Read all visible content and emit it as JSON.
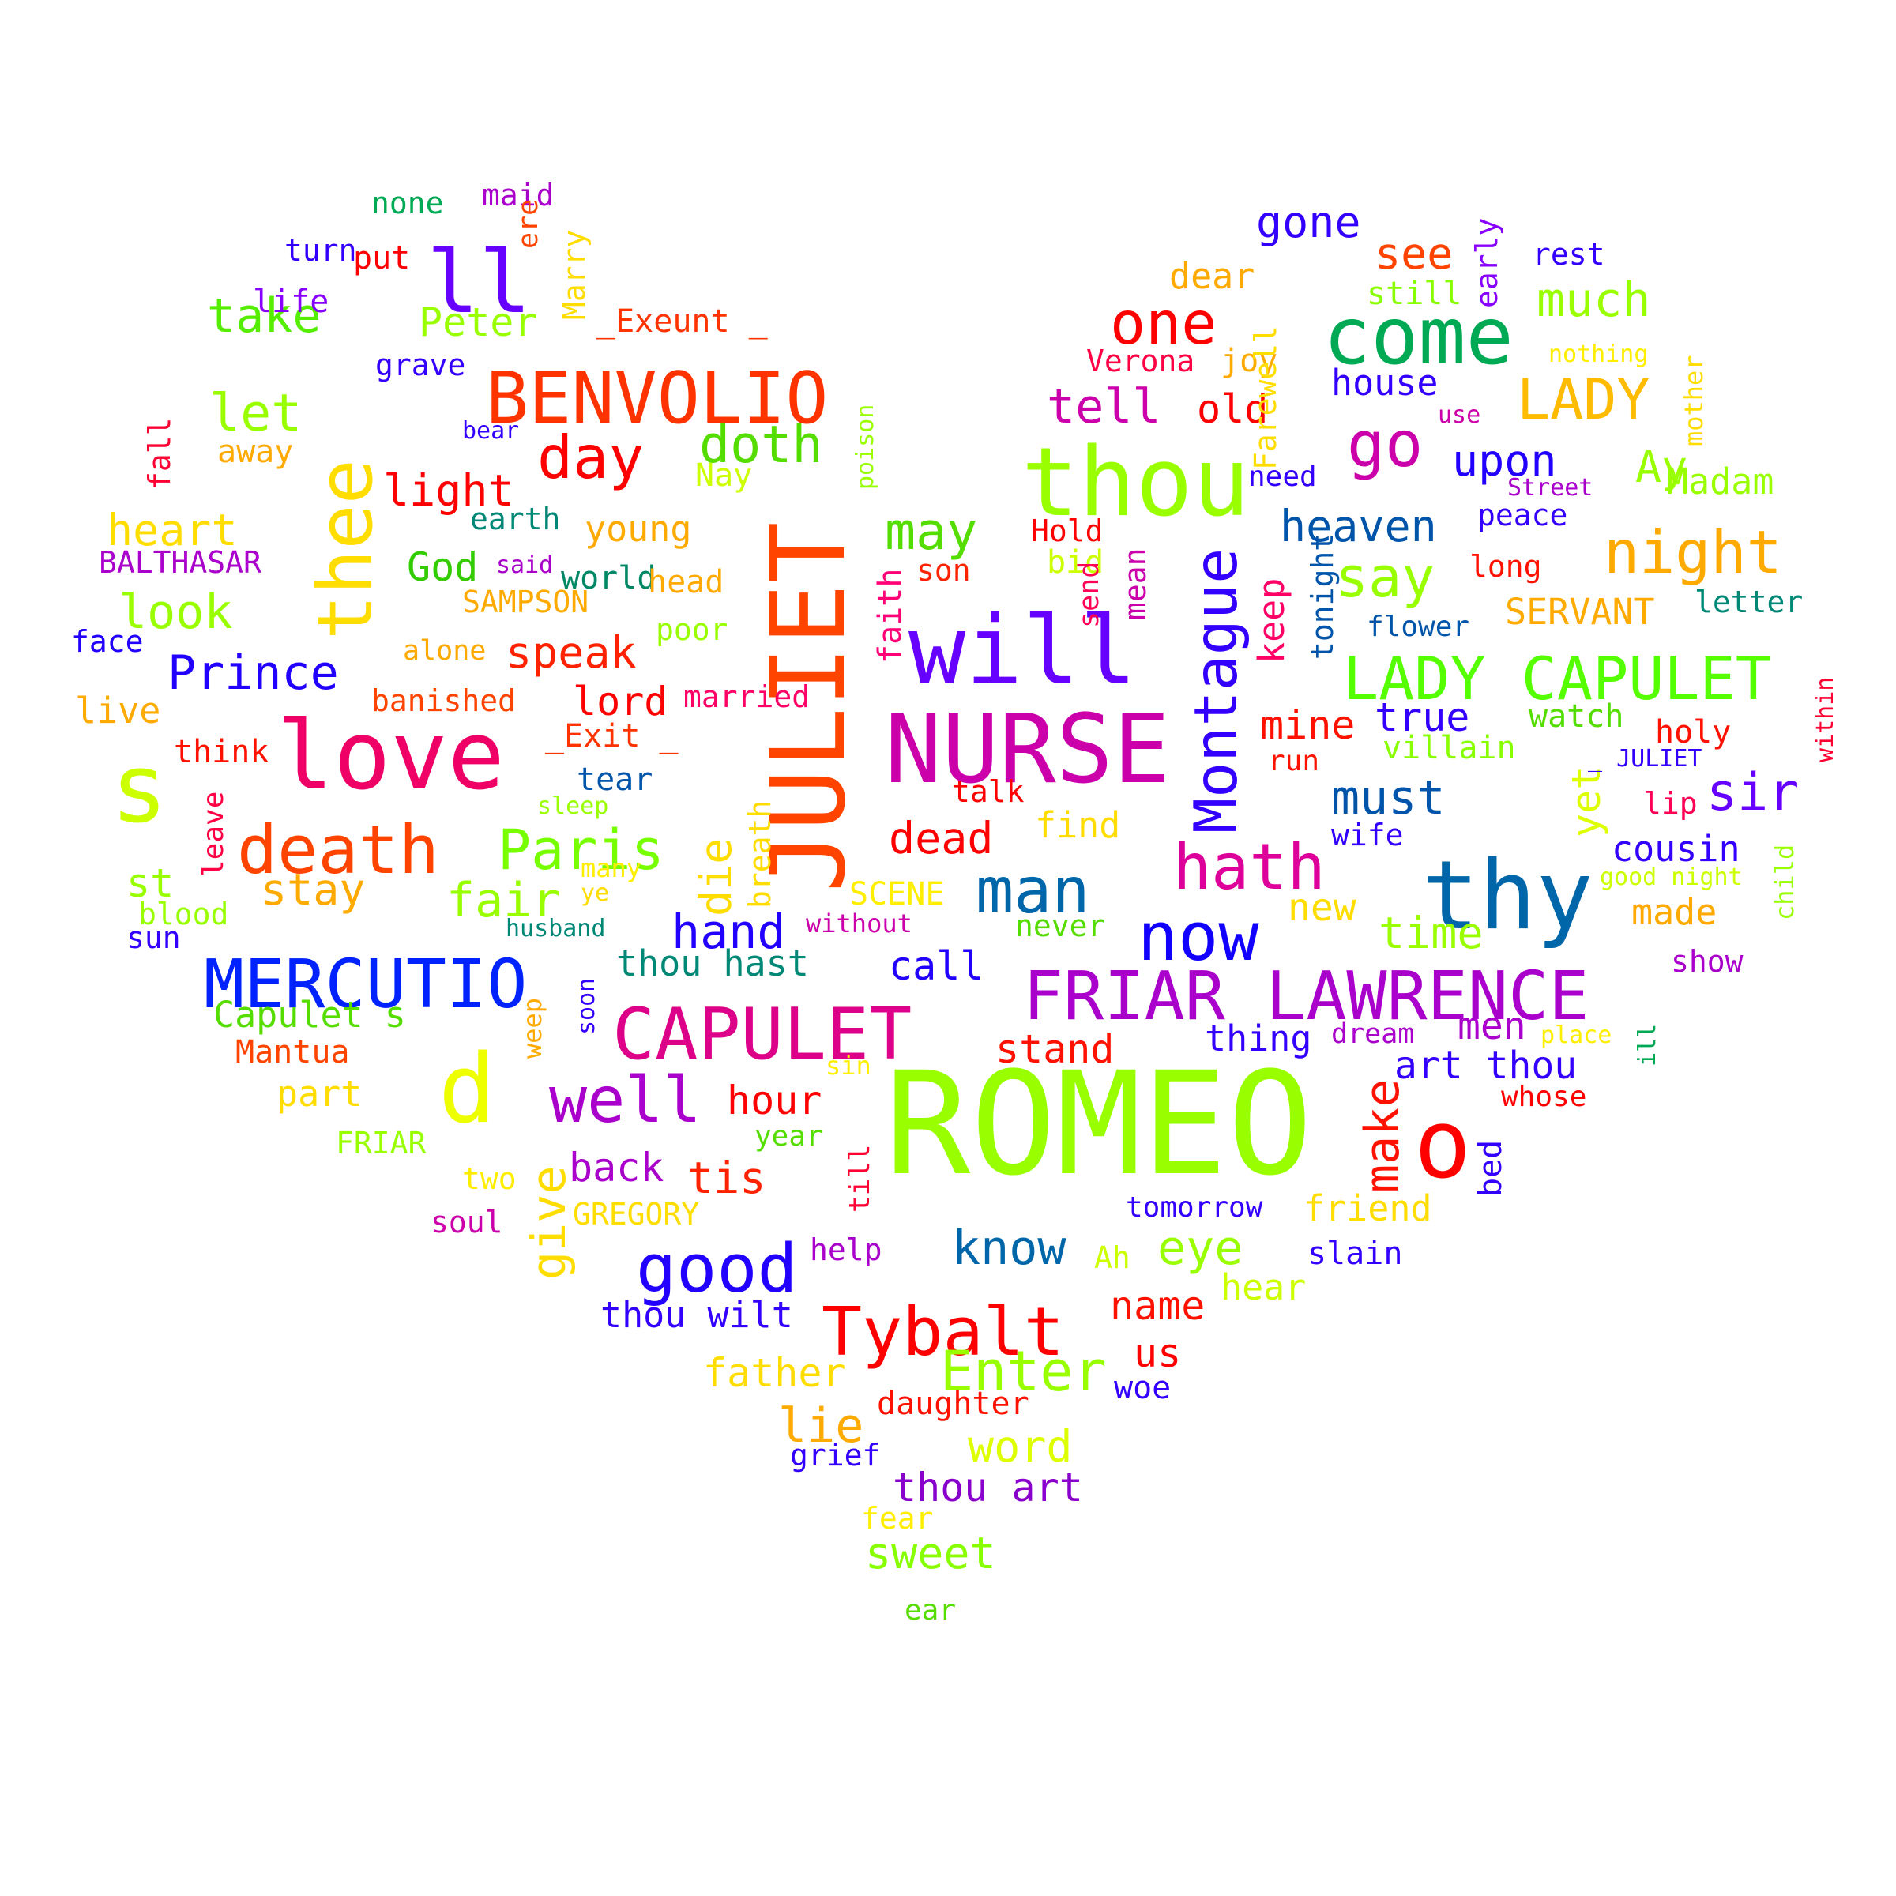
{
  "words": [
    {
      "text": "ROMEO",
      "color": "#99ff00"
    },
    {
      "text": "NURSE",
      "color": "#cc00aa"
    },
    {
      "text": "JULIET",
      "color": "#ff4400"
    },
    {
      "text": "thy",
      "color": "#0066aa"
    },
    {
      "text": "will",
      "color": "#6600ff"
    },
    {
      "text": "thou",
      "color": "#99ff00"
    },
    {
      "text": "love",
      "color": "#ee0066"
    },
    {
      "text": "s",
      "color": "#ccff00"
    },
    {
      "text": "d",
      "color": "#eeff00"
    },
    {
      "text": "o",
      "color": "#ff0000"
    },
    {
      "text": "thee",
      "color": "#ffdd00"
    },
    {
      "text": "come",
      "color": "#00aa55"
    },
    {
      "text": "BENVOLIO",
      "color": "#ff3300"
    },
    {
      "text": "MERCUTIO",
      "color": "#0022ff"
    },
    {
      "text": "CAPULET",
      "color": "#dd0088"
    },
    {
      "text": "FRIAR LAWRENCE",
      "color": "#aa00cc"
    },
    {
      "text": "LADY CAPULET",
      "color": "#55ff00"
    },
    {
      "text": "Tybalt",
      "color": "#ff0000"
    },
    {
      "text": "death",
      "color": "#ff4400"
    },
    {
      "text": "Montague",
      "color": "#3300ff"
    },
    {
      "text": "ll",
      "color": "#6600ff"
    },
    {
      "text": "good",
      "color": "#2200ff"
    },
    {
      "text": "well",
      "color": "#aa00cc"
    },
    {
      "text": "man",
      "color": "#0066aa"
    },
    {
      "text": "now",
      "color": "#1100ff"
    },
    {
      "text": "hath",
      "color": "#dd0099"
    },
    {
      "text": "Paris",
      "color": "#77ff00"
    },
    {
      "text": "one",
      "color": "#ff0000"
    },
    {
      "text": "go",
      "color": "#cc00aa"
    },
    {
      "text": "day",
      "color": "#ff0000"
    },
    {
      "text": "doth",
      "color": "#55dd00"
    },
    {
      "text": "night",
      "color": "#ffaa00"
    },
    {
      "text": "say",
      "color": "#99ff00"
    },
    {
      "text": "Enter",
      "color": "#99ff00"
    },
    {
      "text": "LADY",
      "color": "#ffbb00"
    },
    {
      "text": "may",
      "color": "#55dd00"
    },
    {
      "text": "tell",
      "color": "#cc00aa"
    },
    {
      "text": "let",
      "color": "#99ff00"
    },
    {
      "text": "take",
      "color": "#55ee00"
    },
    {
      "text": "look",
      "color": "#99ff00"
    },
    {
      "text": "Prince",
      "color": "#2200ff"
    },
    {
      "text": "make",
      "color": "#ff1100"
    },
    {
      "text": "give",
      "color": "#ffdd00"
    },
    {
      "text": "know",
      "color": "#0066aa"
    },
    {
      "text": "eye",
      "color": "#99ff00"
    },
    {
      "text": "sir",
      "color": "#6600ff"
    },
    {
      "text": "much",
      "color": "#99ff00"
    },
    {
      "text": "upon",
      "color": "#2200ff"
    },
    {
      "text": "must",
      "color": "#0055aa"
    },
    {
      "text": "yet",
      "color": "#ddff00"
    },
    {
      "text": "fair",
      "color": "#99ff00"
    },
    {
      "text": "hand",
      "color": "#2200ff"
    },
    {
      "text": "light",
      "color": "#ff0000"
    },
    {
      "text": "speak",
      "color": "#ff2200"
    },
    {
      "text": "heaven",
      "color": "#0055aa"
    },
    {
      "text": "heart",
      "color": "#ffdd00"
    },
    {
      "text": "stay",
      "color": "#ffaa00"
    },
    {
      "text": "see",
      "color": "#ff4400"
    },
    {
      "text": "gone",
      "color": "#3300ff"
    },
    {
      "text": "dead",
      "color": "#ff0000"
    },
    {
      "text": "lie",
      "color": "#ffaa00"
    },
    {
      "text": "word",
      "color": "#ddff00"
    },
    {
      "text": "sweet",
      "color": "#88ff00"
    },
    {
      "text": "thou art",
      "color": "#8800cc"
    },
    {
      "text": "tis",
      "color": "#ff2200"
    },
    {
      "text": "name",
      "color": "#ff1100"
    },
    {
      "text": "back",
      "color": "#aa00cc"
    },
    {
      "text": "hour",
      "color": "#ff0000"
    },
    {
      "text": "stand",
      "color": "#ff1100"
    },
    {
      "text": "call",
      "color": "#2200ff"
    },
    {
      "text": "time",
      "color": "#99ff00"
    },
    {
      "text": "art thou",
      "color": "#3300ff"
    },
    {
      "text": "die",
      "color": "#ffdd00"
    },
    {
      "text": "Ay",
      "color": "#99ff00"
    },
    {
      "text": "God",
      "color": "#33cc00"
    },
    {
      "text": "lord",
      "color": "#ff0000"
    },
    {
      "text": "mine",
      "color": "#ff1100"
    },
    {
      "text": "true",
      "color": "#3300ff"
    },
    {
      "text": "cousin",
      "color": "#3300ff"
    },
    {
      "text": "us",
      "color": "#ff0000"
    },
    {
      "text": "new",
      "color": "#ffdd00"
    },
    {
      "text": "men",
      "color": "#aa00cc"
    },
    {
      "text": "old",
      "color": "#ff0000"
    },
    {
      "text": "house",
      "color": "#3300ff"
    },
    {
      "text": "thou wilt",
      "color": "#3300ff"
    },
    {
      "text": "Peter",
      "color": "#99ff00"
    },
    {
      "text": "father",
      "color": "#ffdd00"
    },
    {
      "text": "dear",
      "color": "#ffaa00"
    },
    {
      "text": "hear",
      "color": "#ccff00"
    },
    {
      "text": "thou hast",
      "color": "#008877"
    },
    {
      "text": "st",
      "color": "#99ff00"
    },
    {
      "text": "made",
      "color": "#ffaa00"
    },
    {
      "text": "young",
      "color": "#ffaa00"
    },
    {
      "text": "live",
      "color": "#ffaa00"
    },
    {
      "text": "Madam",
      "color": "#99ff00"
    },
    {
      "text": "SERVANT",
      "color": "#ffaa00"
    },
    {
      "text": "Capulet s",
      "color": "#55dd00"
    },
    {
      "text": "watch",
      "color": "#55dd00"
    },
    {
      "text": "holy",
      "color": "#ff1100"
    },
    {
      "text": "find",
      "color": "#ffdd00"
    },
    {
      "text": "thing",
      "color": "#3300ff"
    },
    {
      "text": "friend",
      "color": "#ffdd00"
    },
    {
      "text": "keep",
      "color": "#ff0066"
    },
    {
      "text": "_Exeunt _",
      "color": "#ff3300"
    },
    {
      "text": "_Exit _",
      "color": "#ff3300"
    },
    {
      "text": "world",
      "color": "#008866"
    },
    {
      "text": "part",
      "color": "#ffdd00"
    },
    {
      "text": "head",
      "color": "#ffaa00"
    },
    {
      "text": "faith",
      "color": "#ff0077"
    },
    {
      "text": "Marry",
      "color": "#ffdd00"
    },
    {
      "text": "life",
      "color": "#8800ff"
    },
    {
      "text": "SAMPSON",
      "color": "#ffaa00"
    },
    {
      "text": "earth",
      "color": "#008877"
    },
    {
      "text": "letter",
      "color": "#008877"
    },
    {
      "text": "tear",
      "color": "#0055aa"
    },
    {
      "text": "poor",
      "color": "#99ff00"
    },
    {
      "text": "married",
      "color": "#ff0066"
    },
    {
      "text": "banished",
      "color": "#ff4400"
    },
    {
      "text": "think",
      "color": "#ff1100"
    },
    {
      "text": "face",
      "color": "#2200ff"
    },
    {
      "text": "away",
      "color": "#ffaa00"
    },
    {
      "text": "grave",
      "color": "#3300ff"
    },
    {
      "text": "put",
      "color": "#ff0000"
    },
    {
      "text": "turn",
      "color": "#3300ff"
    },
    {
      "text": "none",
      "color": "#00aa55"
    },
    {
      "text": "maid",
      "color": "#aa00cc"
    },
    {
      "text": "ere",
      "color": "#ff4400"
    },
    {
      "text": "BALTHASAR",
      "color": "#aa00cc"
    },
    {
      "text": "Hold",
      "color": "#ff0000"
    },
    {
      "text": "bid",
      "color": "#ccff00"
    },
    {
      "text": "son",
      "color": "#ff2200"
    },
    {
      "text": "mean",
      "color": "#cc00aa"
    },
    {
      "text": "send",
      "color": "#ff0055"
    },
    {
      "text": "Verona",
      "color": "#ff0044"
    },
    {
      "text": "joy",
      "color": "#ffaa00"
    },
    {
      "text": "need",
      "color": "#3300ff"
    },
    {
      "text": "still",
      "color": "#88ff00"
    },
    {
      "text": "rest",
      "color": "#3300ff"
    },
    {
      "text": "early",
      "color": "#8800ff"
    },
    {
      "text": "Farewell",
      "color": "#ffdd00"
    },
    {
      "text": "nothing",
      "color": "#ffee00"
    },
    {
      "text": "mother",
      "color": "#ffdd00"
    },
    {
      "text": "use",
      "color": "#cc00aa"
    },
    {
      "text": "Street",
      "color": "#aa00cc"
    },
    {
      "text": "peace",
      "color": "#3300ff"
    },
    {
      "text": "long",
      "color": "#ff1100"
    },
    {
      "text": "tonight",
      "color": "#0055aa"
    },
    {
      "text": "flower",
      "color": "#0055aa"
    },
    {
      "text": "villain",
      "color": "#88ff00"
    },
    {
      "text": "run",
      "color": "#ff1100"
    },
    {
      "text": "_ JULIET",
      "color": "#3300ff"
    },
    {
      "text": "within",
      "color": "#ff0033"
    },
    {
      "text": "lip",
      "color": "#ff0055"
    },
    {
      "text": "child",
      "color": "#99ff00"
    },
    {
      "text": "good night",
      "color": "#ccff00"
    },
    {
      "text": "show",
      "color": "#aa00cc"
    },
    {
      "text": "wife",
      "color": "#3300ff"
    },
    {
      "text": "talk",
      "color": "#ff0000"
    },
    {
      "text": "SCENE",
      "color": "#ffee00"
    },
    {
      "text": "without",
      "color": "#cc00aa"
    },
    {
      "text": "never",
      "color": "#55dd00"
    },
    {
      "text": "dream",
      "color": "#aa00cc"
    },
    {
      "text": "place",
      "color": "#ffee00"
    },
    {
      "text": "ill",
      "color": "#00aa55"
    },
    {
      "text": "whose",
      "color": "#ff0000"
    },
    {
      "text": "bed",
      "color": "#3300ff"
    },
    {
      "text": "tomorrow",
      "color": "#3300ff"
    },
    {
      "text": "slain",
      "color": "#3300ff"
    },
    {
      "text": "woe",
      "color": "#3300ff"
    },
    {
      "text": "Ah",
      "color": "#ccff00"
    },
    {
      "text": "help",
      "color": "#aa00cc"
    },
    {
      "text": "till",
      "color": "#ff0033"
    },
    {
      "text": "year",
      "color": "#55dd00"
    },
    {
      "text": "sin",
      "color": "#ffee00"
    },
    {
      "text": "daughter",
      "color": "#ff1100"
    },
    {
      "text": "grief",
      "color": "#3300ff"
    },
    {
      "text": "fear",
      "color": "#ffee00"
    },
    {
      "text": "ear",
      "color": "#55dd00"
    },
    {
      "text": "GREGORY",
      "color": "#ffdd00"
    },
    {
      "text": "soul",
      "color": "#cc00aa"
    },
    {
      "text": "two",
      "color": "#ffee00"
    },
    {
      "text": "FRIAR",
      "color": "#99ff00"
    },
    {
      "text": "Mantua",
      "color": "#ff4400"
    },
    {
      "text": "weep",
      "color": "#ffaa00"
    },
    {
      "text": "soon",
      "color": "#3300ff"
    },
    {
      "text": "sun",
      "color": "#3300ff"
    },
    {
      "text": "blood",
      "color": "#99ff00"
    },
    {
      "text": "husband",
      "color": "#008877"
    },
    {
      "text": "ye",
      "color": "#ffdd00"
    },
    {
      "text": "many",
      "color": "#ffee00"
    },
    {
      "text": "breath",
      "color": "#ffdd00"
    },
    {
      "text": "leave",
      "color": "#ff0044"
    },
    {
      "text": "sleep",
      "color": "#99ff00"
    },
    {
      "text": "alone",
      "color": "#ffaa00"
    },
    {
      "text": "said",
      "color": "#aa00cc"
    },
    {
      "text": "poison",
      "color": "#99ff00"
    },
    {
      "text": "Nay",
      "color": "#ccff00"
    },
    {
      "text": "bear",
      "color": "#3300ff"
    },
    {
      "text": "fall",
      "color": "#ff0033"
    }
  ]
}
